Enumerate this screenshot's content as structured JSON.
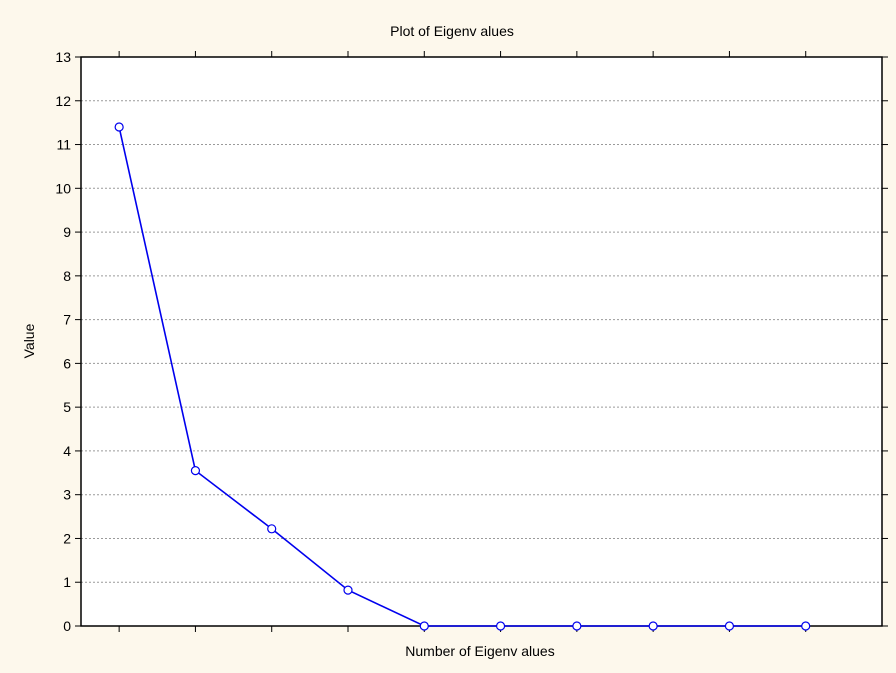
{
  "chart_data": {
    "type": "line",
    "title": "Plot of  Eigenv alues",
    "xlabel": "Number of  Eigenv alues",
    "ylabel": "Value",
    "x": [
      1,
      2,
      3,
      4,
      5,
      6,
      7,
      8,
      9,
      10
    ],
    "xlim": [
      0.5,
      11
    ],
    "ylim": [
      0,
      13
    ],
    "yticks": [
      0,
      1,
      2,
      3,
      4,
      5,
      6,
      7,
      8,
      9,
      10,
      11,
      12,
      13
    ],
    "ytick_labels": [
      "0",
      "1",
      "2",
      "3",
      "4",
      "5",
      "6",
      "7",
      "8",
      "9",
      "10",
      "11",
      "12",
      "13"
    ],
    "grid": true,
    "series": [
      {
        "values": [
          11.4,
          3.55,
          2.22,
          0.82,
          0.0,
          0.0,
          0.0,
          0.0,
          0.0,
          0.0
        ],
        "color": "#0000ee",
        "marker": "open-circle"
      }
    ]
  }
}
